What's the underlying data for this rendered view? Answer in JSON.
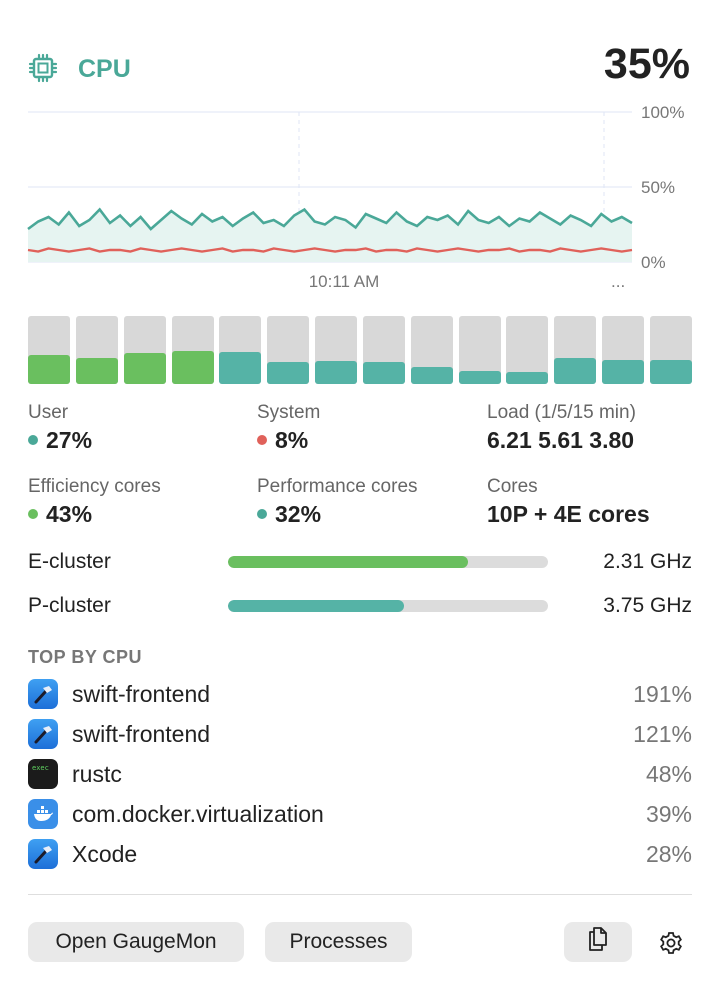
{
  "header": {
    "title": "CPU",
    "usage": "35%",
    "icon": "cpu-chip-icon",
    "accent": "#4aa898"
  },
  "chart": {
    "ticks": [
      "100%",
      "50%",
      "0%"
    ],
    "time_label": "10:11 AM",
    "more_label": "...",
    "colors": {
      "user": "#4aa898",
      "system": "#e0615a",
      "fill": "#e6f4f1"
    }
  },
  "chart_data": {
    "type": "area",
    "ylim": [
      0,
      100
    ],
    "y_ticks": [
      "0%",
      "50%",
      "100%"
    ],
    "x_tick_labels": [
      "10:11 AM"
    ],
    "series": [
      {
        "name": "User",
        "values": [
          22,
          27,
          30,
          25,
          33,
          24,
          28,
          35,
          26,
          31,
          24,
          30,
          22,
          28,
          34,
          29,
          25,
          32,
          27,
          30,
          24,
          29,
          33,
          26,
          28,
          24,
          31,
          35,
          27,
          25,
          30,
          28,
          23,
          32,
          29,
          26,
          33,
          27,
          24,
          30,
          28,
          31,
          25,
          34,
          28,
          26,
          30,
          24,
          29,
          27,
          33,
          29,
          25,
          31,
          28,
          24,
          32,
          27,
          30,
          26
        ]
      },
      {
        "name": "System",
        "values": [
          8,
          7,
          9,
          8,
          7,
          8,
          9,
          7,
          8,
          8,
          7,
          9,
          8,
          7,
          8,
          9,
          8,
          7,
          8,
          9,
          7,
          8,
          8,
          7,
          9,
          8,
          7,
          8,
          9,
          8,
          7,
          8,
          8,
          9,
          7,
          8,
          8,
          7,
          9,
          8,
          7,
          8,
          9,
          8,
          7,
          8,
          8,
          9,
          7,
          8,
          8,
          7,
          9,
          8,
          7,
          8,
          9,
          8,
          7,
          8
        ]
      }
    ]
  },
  "cores": {
    "colors": {
      "efficiency": "#6abf5f",
      "performance": "#55b3a6",
      "track": "#d8d8d8"
    },
    "items": [
      {
        "type": "efficiency",
        "load": 0.43
      },
      {
        "type": "efficiency",
        "load": 0.38
      },
      {
        "type": "efficiency",
        "load": 0.45
      },
      {
        "type": "efficiency",
        "load": 0.49
      },
      {
        "type": "performance",
        "load": 0.47
      },
      {
        "type": "performance",
        "load": 0.32
      },
      {
        "type": "performance",
        "load": 0.34
      },
      {
        "type": "performance",
        "load": 0.32
      },
      {
        "type": "performance",
        "load": 0.25
      },
      {
        "type": "performance",
        "load": 0.19
      },
      {
        "type": "performance",
        "load": 0.17
      },
      {
        "type": "performance",
        "load": 0.38
      },
      {
        "type": "performance",
        "load": 0.35
      },
      {
        "type": "performance",
        "load": 0.36
      }
    ]
  },
  "stats": {
    "user": {
      "label": "User",
      "value": "27%",
      "color": "#4aa898"
    },
    "system": {
      "label": "System",
      "value": "8%",
      "color": "#e0615a"
    },
    "load": {
      "label": "Load (1/5/15 min)",
      "value": "6.21 5.61 3.80"
    },
    "efficiency": {
      "label": "Efficiency cores",
      "value": "43%",
      "color": "#6abf5f"
    },
    "performance": {
      "label": "Performance cores",
      "value": "32%",
      "color": "#4aa898"
    },
    "cores": {
      "label": "Cores",
      "value": "10P + 4E cores"
    }
  },
  "clusters": [
    {
      "label": "E-cluster",
      "freq": "2.31 GHz",
      "level": 0.75,
      "color": "#6abf5f"
    },
    {
      "label": "P-cluster",
      "freq": "3.75 GHz",
      "level": 0.55,
      "color": "#55b3a6"
    }
  ],
  "top": {
    "title": "TOP BY CPU",
    "processes": [
      {
        "name": "swift-frontend",
        "pct": "191%",
        "icon": "xcode-hammer-icon"
      },
      {
        "name": "swift-frontend",
        "pct": "121%",
        "icon": "xcode-hammer-icon"
      },
      {
        "name": "rustc",
        "pct": "48%",
        "icon": "terminal-exec-icon",
        "icon_text": "exec"
      },
      {
        "name": "com.docker.virtualization",
        "pct": "39%",
        "icon": "docker-whale-icon"
      },
      {
        "name": "Xcode",
        "pct": "28%",
        "icon": "xcode-hammer-icon"
      }
    ]
  },
  "footer": {
    "open_label": "Open GaugeMon",
    "processes_label": "Processes",
    "copy_icon": "copy-icon",
    "settings_icon": "gear-icon"
  }
}
